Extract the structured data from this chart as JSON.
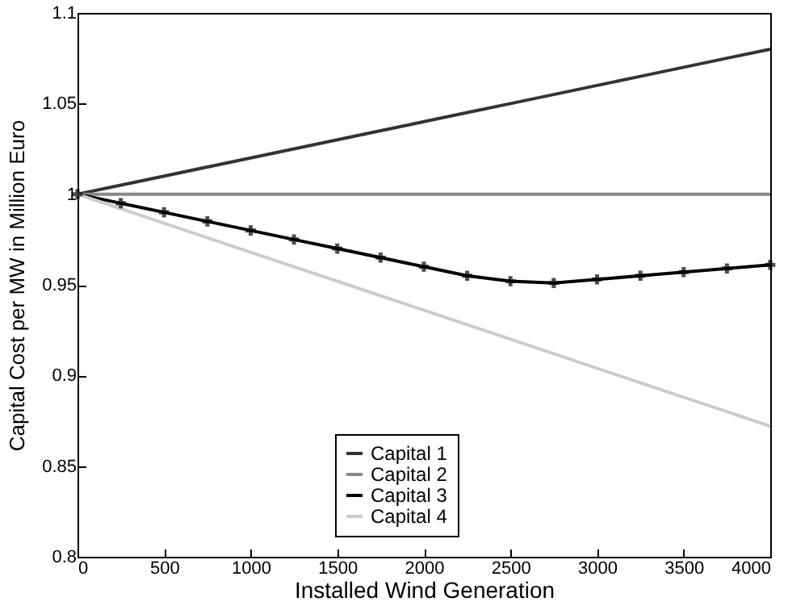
{
  "chart_data": {
    "type": "line",
    "xlabel": "Installed Wind Generation",
    "ylabel": "Capital Cost per MW in Million Euro",
    "x": [
      0,
      250,
      500,
      750,
      1000,
      1250,
      1500,
      1750,
      2000,
      2250,
      2500,
      2750,
      3000,
      3250,
      3500,
      3750,
      4000
    ],
    "series": [
      {
        "name": "Capital 1",
        "color": "#333333",
        "values": [
          1,
          1.005,
          1.01,
          1.015,
          1.02,
          1.025,
          1.03,
          1.035,
          1.04,
          1.045,
          1.05,
          1.055,
          1.06,
          1.065,
          1.07,
          1.075,
          1.08
        ]
      },
      {
        "name": "Capital 2",
        "color": "#888888",
        "values": [
          1,
          1,
          1,
          1,
          1,
          1,
          1,
          1,
          1,
          1,
          1,
          1,
          1,
          1,
          1,
          1,
          1
        ]
      },
      {
        "name": "Capital 3",
        "color": "#000000",
        "marker": "cross",
        "values": [
          1,
          0.995,
          0.99,
          0.985,
          0.98,
          0.975,
          0.97,
          0.965,
          0.96,
          0.955,
          0.952,
          0.951,
          0.953,
          0.955,
          0.957,
          0.959,
          0.961
        ]
      },
      {
        "name": "Capital 4",
        "color": "#cccccc",
        "values": [
          1,
          0.992,
          0.984,
          0.976,
          0.968,
          0.96,
          0.952,
          0.944,
          0.936,
          0.928,
          0.92,
          0.912,
          0.904,
          0.896,
          0.888,
          0.88,
          0.872
        ]
      }
    ],
    "xlim": [
      0,
      4000
    ],
    "xticks": [
      0,
      500,
      1000,
      1500,
      2000,
      2500,
      3000,
      3500,
      4000
    ],
    "ylim": [
      0.8,
      1.1
    ],
    "yticks": [
      0.8,
      0.85,
      0.9,
      0.95,
      1,
      1.05,
      1.1
    ],
    "grid": false,
    "legend": "bottom"
  }
}
